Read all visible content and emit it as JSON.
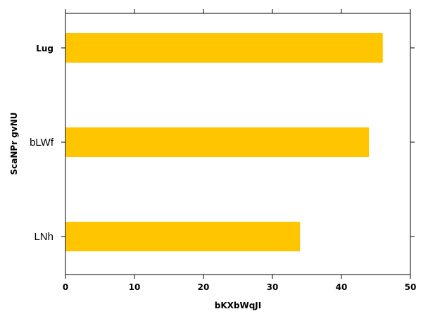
{
  "chart_data": {
    "type": "bar",
    "orientation": "horizontal",
    "categories": [
      "Lug",
      "bLWf",
      "LNh"
    ],
    "category_label_weight": [
      "bold",
      "normal",
      "normal"
    ],
    "values": [
      46,
      44,
      34
    ],
    "xlabel": "bKXbWqJI",
    "ylabel": "ScaNPr gvNU",
    "xlim": [
      0,
      50
    ],
    "xticks": [
      "0",
      "10",
      "20",
      "30",
      "40",
      "50"
    ],
    "grid": false,
    "bar_color": "#ffc600"
  }
}
